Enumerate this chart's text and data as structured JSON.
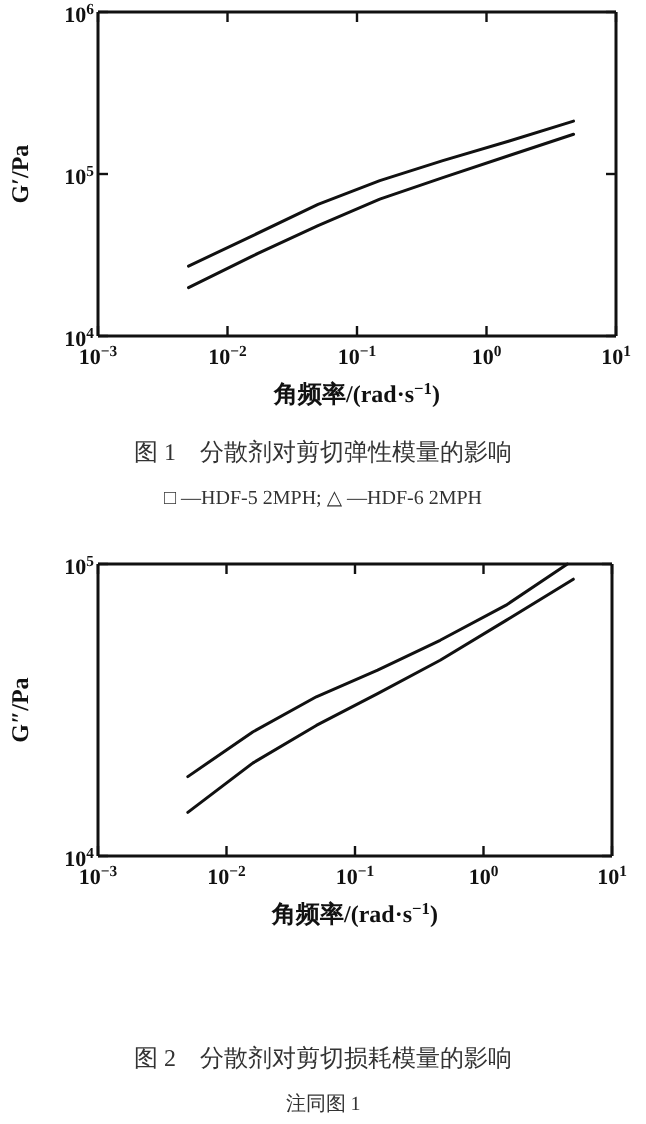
{
  "chart_data": [
    {
      "type": "line",
      "title": "图 1　分散剂对剪切弹性模量的影响",
      "xlabel": "角频率/(rad·s$^{−1}$)",
      "ylabel": "G′/Pa",
      "annotations": [
        "□ —HDF-5 2MPH; △ —HDF-6 2MPH"
      ],
      "log": "xy",
      "xlim": [
        0.001,
        10
      ],
      "ylim": [
        10000,
        1000000
      ],
      "xticks": [
        {
          "value": 0.001,
          "label": "10$^{−3}$"
        },
        {
          "value": 0.01,
          "label": "10$^{−2}$"
        },
        {
          "value": 0.1,
          "label": "10$^{−1}$"
        },
        {
          "value": 1,
          "label": "10$^{0}$"
        },
        {
          "value": 10,
          "label": "10$^{1}$"
        }
      ],
      "yticks": [
        {
          "value": 10000,
          "label": "10$^{4}$"
        },
        {
          "value": 100000,
          "label": "10$^{5}$"
        },
        {
          "value": 1000000,
          "label": "10$^{6}$"
        }
      ],
      "series": [
        {
          "color": "#111111",
          "x": [
            0.005,
            0.016,
            0.05,
            0.15,
            0.46,
            1.5,
            4.7
          ],
          "values": [
            27000,
            42000,
            65000,
            91000,
            121000,
            160000,
            212000
          ]
        },
        {
          "color": "#111111",
          "x": [
            0.005,
            0.016,
            0.05,
            0.15,
            0.46,
            1.5,
            4.7
          ],
          "values": [
            19900,
            31500,
            48000,
            70000,
            95000,
            130000,
            176000
          ]
        }
      ]
    },
    {
      "type": "line",
      "title": "图 2　分散剂对剪切损耗模量的影响",
      "xlabel": "角频率/(rad·s$^{−1}$)",
      "ylabel": "G″/Pa",
      "annotations": [
        "注同图 1"
      ],
      "log": "xy",
      "xlim": [
        0.001,
        10
      ],
      "ylim": [
        10000,
        100000
      ],
      "xticks": [
        {
          "value": 0.001,
          "label": "10$^{−3}$"
        },
        {
          "value": 0.01,
          "label": "10$^{−2}$"
        },
        {
          "value": 0.1,
          "label": "10$^{−1}$"
        },
        {
          "value": 1,
          "label": "10$^{0}$"
        },
        {
          "value": 10,
          "label": "10$^{1}$"
        }
      ],
      "yticks": [
        {
          "value": 10000,
          "label": "10$^{4}$"
        },
        {
          "value": 100000,
          "label": "10$^{5}$"
        }
      ],
      "series": [
        {
          "color": "#111111",
          "x": [
            0.005,
            0.016,
            0.05,
            0.15,
            0.46,
            1.5,
            4.5
          ],
          "values": [
            18700,
            26600,
            35100,
            43300,
            54800,
            72300,
            100000
          ]
        },
        {
          "color": "#111111",
          "x": [
            0.005,
            0.016,
            0.05,
            0.15,
            0.46,
            1.5,
            5
          ],
          "values": [
            14100,
            20800,
            28000,
            36000,
            46800,
            64100,
            88700
          ]
        }
      ]
    }
  ]
}
